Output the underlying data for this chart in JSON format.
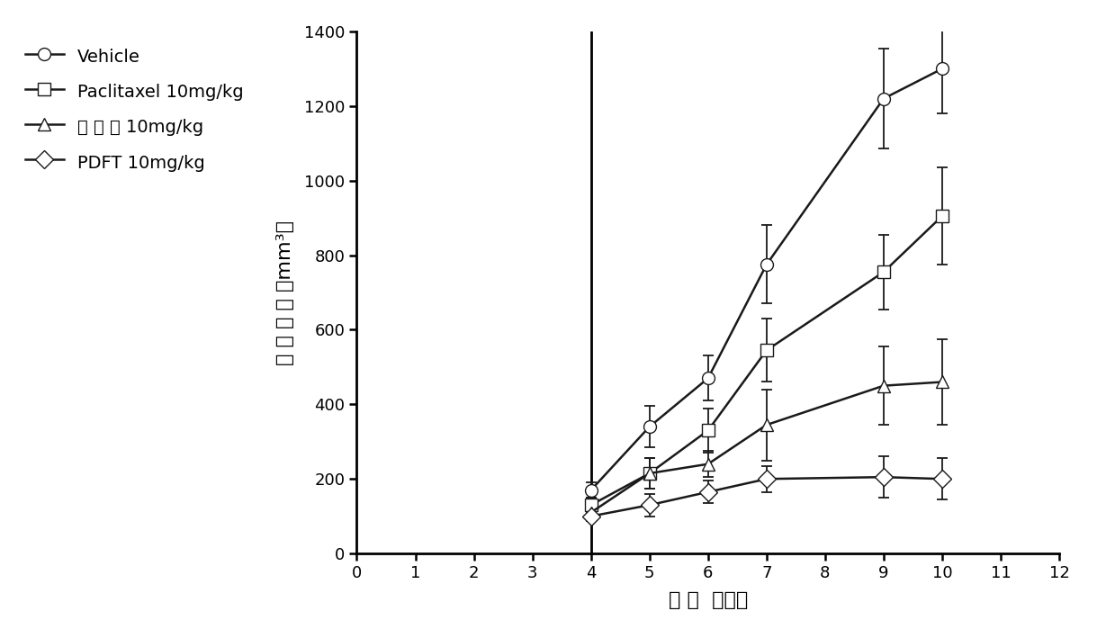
{
  "x_days": [
    4,
    5,
    6,
    7,
    9,
    10
  ],
  "vehicle": {
    "y": [
      170,
      340,
      470,
      775,
      1220,
      1300
    ],
    "yerr": [
      20,
      55,
      60,
      105,
      135,
      120
    ],
    "label": "Vehicle",
    "marker": "o"
  },
  "paclitaxel": {
    "y": [
      130,
      215,
      330,
      545,
      755,
      905
    ],
    "yerr": [
      20,
      40,
      60,
      85,
      100,
      130
    ],
    "label": "Paclitaxel 10mg/kg",
    "marker": "s"
  },
  "control": {
    "y": [
      110,
      215,
      240,
      345,
      450,
      460
    ],
    "yerr": [
      15,
      40,
      35,
      95,
      105,
      115
    ],
    "label": "对 照 例 10mg/kg",
    "marker": "^"
  },
  "pdft": {
    "y": [
      100,
      130,
      165,
      200,
      205,
      200
    ],
    "yerr": [
      12,
      30,
      30,
      35,
      55,
      55
    ],
    "label": "PDFT 10mg/kg",
    "marker": "D"
  },
  "xlabel": "时 间  （天）",
  "ylabel": "肿 瘾 体 积 （mm³）",
  "xlim": [
    0,
    12
  ],
  "ylim": [
    0,
    1400
  ],
  "xticks": [
    0,
    1,
    2,
    3,
    4,
    5,
    6,
    7,
    8,
    9,
    10,
    11,
    12
  ],
  "yticks": [
    0,
    200,
    400,
    600,
    800,
    1000,
    1200,
    1400
  ],
  "line_color": "#1a1a1a",
  "background_color": "#ffffff",
  "fontsize_label": 16,
  "fontsize_tick": 13,
  "fontsize_legend": 14,
  "marker_size": 10,
  "line_width": 1.8,
  "capsize": 4
}
